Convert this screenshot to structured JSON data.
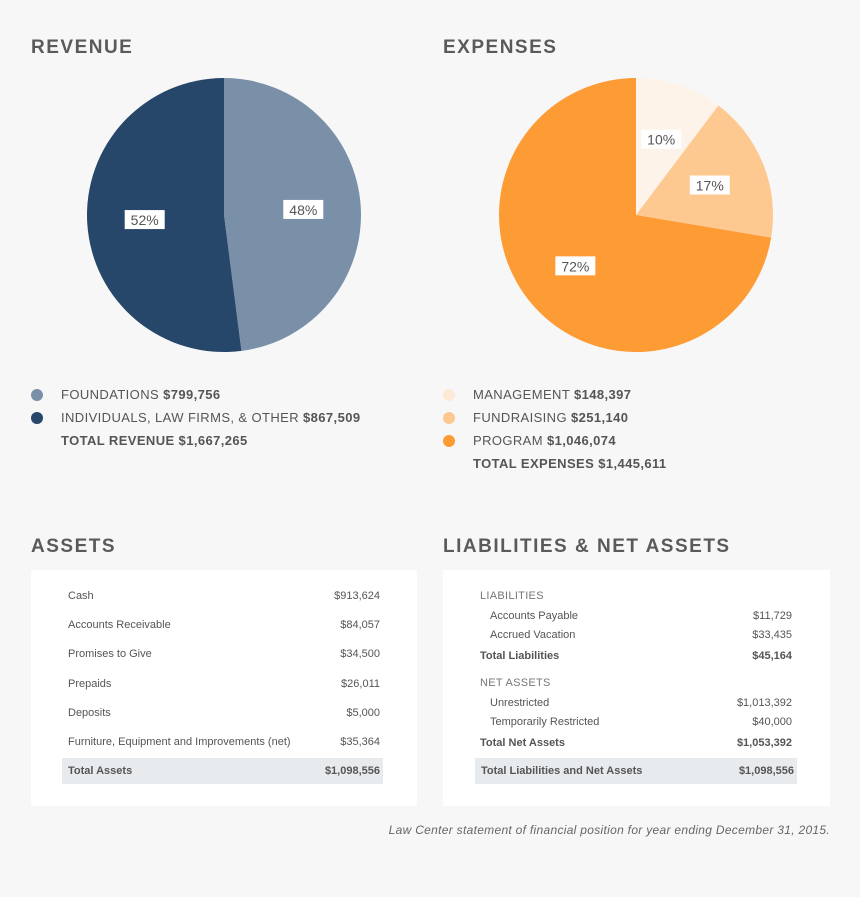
{
  "revenue": {
    "title": "REVENUE",
    "legend": [
      {
        "name": "FOUNDATIONS",
        "amount": "$799,756",
        "color": "#7a90a8"
      },
      {
        "name": "INDIVIDUALS, LAW FIRMS, & OTHER",
        "amount": "$867,509",
        "color": "#27476a"
      }
    ],
    "total": "TOTAL REVENUE $1,667,265"
  },
  "expenses": {
    "title": "EXPENSES",
    "legend": [
      {
        "name": "MANAGEMENT",
        "amount": "$148,397",
        "color": "#fdeedd"
      },
      {
        "name": "FUNDRAISING",
        "amount": "$251,140",
        "color": "#fec990"
      },
      {
        "name": "PROGRAM",
        "amount": "$1,046,074",
        "color": "#fd9b35"
      }
    ],
    "total": "TOTAL EXPENSES $1,445,611"
  },
  "chart_data": [
    {
      "type": "pie",
      "title": "REVENUE",
      "categories": [
        "FOUNDATIONS",
        "INDIVIDUALS, LAW FIRMS, & OTHER"
      ],
      "values": [
        799756,
        867509
      ],
      "labels": [
        "48%",
        "52%"
      ],
      "colors": [
        "#7a90a8",
        "#27476a"
      ]
    },
    {
      "type": "pie",
      "title": "EXPENSES",
      "categories": [
        "MANAGEMENT",
        "FUNDRAISING",
        "PROGRAM"
      ],
      "values": [
        148397,
        251140,
        1046074
      ],
      "labels": [
        "10%",
        "17%",
        "72%"
      ],
      "colors": [
        "#fdf3e8",
        "#fec990",
        "#fd9b35"
      ]
    }
  ],
  "assets": {
    "title": "ASSETS",
    "rows": [
      {
        "label": "Cash",
        "value": "$913,624"
      },
      {
        "label": "Accounts Receivable",
        "value": "$84,057"
      },
      {
        "label": "Promises to Give",
        "value": "$34,500"
      },
      {
        "label": "Prepaids",
        "value": "$26,011"
      },
      {
        "label": "Deposits",
        "value": "$5,000"
      },
      {
        "label": "Furniture, Equipment and Improvements (net)",
        "value": "$35,364"
      }
    ],
    "total": {
      "label": "Total Assets",
      "value": "$1,098,556"
    }
  },
  "liabilities": {
    "title": "LIABILITIES & NET ASSETS",
    "liab_heading": "LIABILITIES",
    "liab_rows": [
      {
        "label": "Accounts Payable",
        "value": "$11,729"
      },
      {
        "label": "Accrued Vacation",
        "value": "$33,435"
      }
    ],
    "liab_total": {
      "label": "Total Liabilities",
      "value": "$45,164"
    },
    "net_heading": "NET ASSETS",
    "net_rows": [
      {
        "label": "Unrestricted",
        "value": "$1,013,392"
      },
      {
        "label": "Temporarily Restricted",
        "value": "$40,000"
      }
    ],
    "net_total": {
      "label": "Total Net Assets",
      "value": "$1,053,392"
    },
    "grand_total": {
      "label": "Total Liabilities and Net Assets",
      "value": "$1,098,556"
    }
  },
  "caption": "Law Center statement of financial position for year ending December 31, 2015."
}
